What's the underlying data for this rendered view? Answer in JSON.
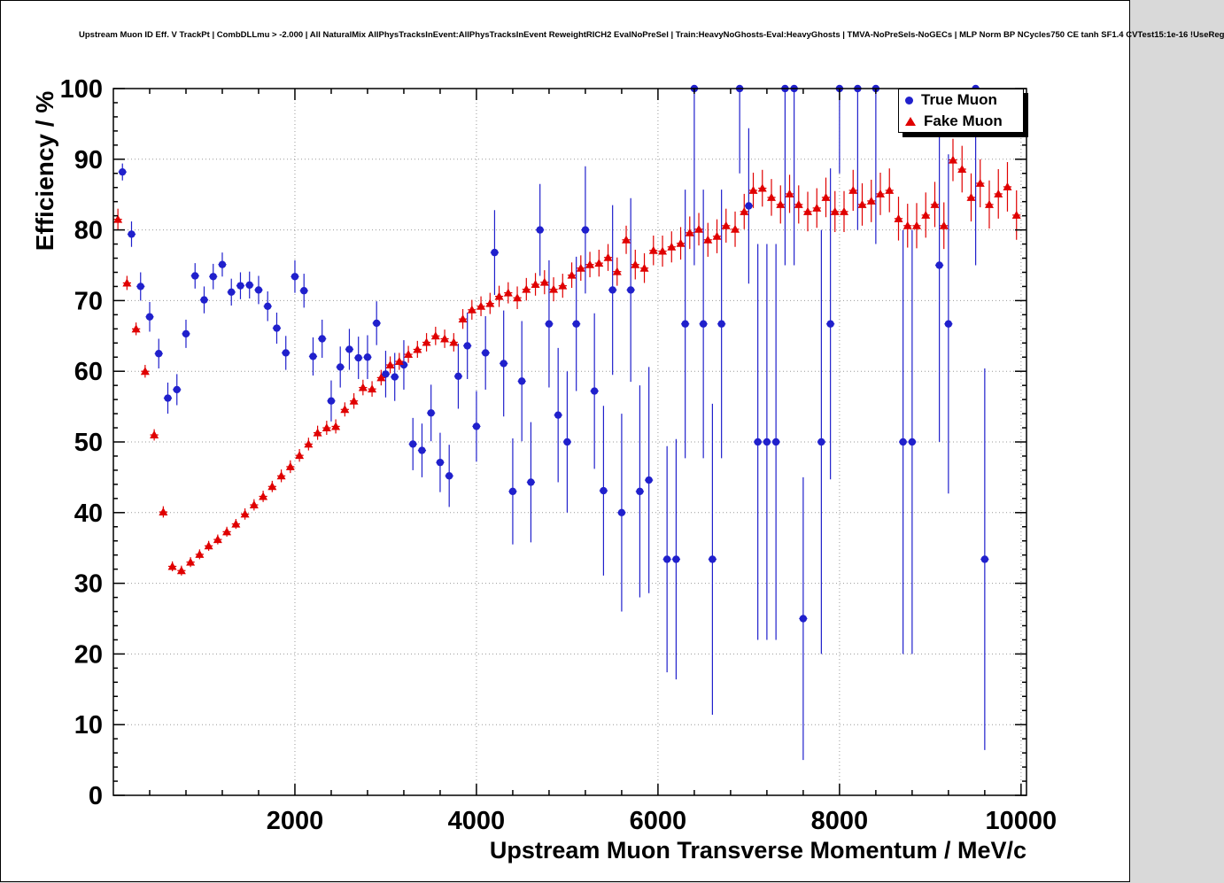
{
  "title_line": "Upstream Muon ID Eff. V TrackPt | CombDLLmu > -2.000 | All NaturalMix AllPhysTracksInEvent:AllPhysTracksInEvent ReweightRICH2 EvalNoPreSel | Train:HeavyNoGhosts-Eval:HeavyGhosts | TMVA-NoPreSels-NoGECs | MLP Norm BP NCycles750 CE tanh SF1.4 CVTest15:1e-16 !UseReg",
  "chart_data": {
    "type": "scatter",
    "title": "Upstream Muon ID Eff. V TrackPt | CombDLLmu > -2.000 | All NaturalMix AllPhysTracksInEvent:AllPhysTracksInEvent ReweightRICH2 EvalNoPreSel | Train:HeavyNoGhosts-Eval:HeavyGhosts | TMVA-NoPreSels-NoGECs | MLP Norm BP NCycles750 CE tanh SF1.4 CVTest15:1e-16 !UseReg",
    "xlabel": "Upstream Muon Transverse Momentum / MeV/c",
    "ylabel": "Efficiency / %",
    "xlim": [
      0,
      10060
    ],
    "ylim": [
      0,
      100
    ],
    "x_ticks": [
      2000,
      4000,
      6000,
      8000,
      10000
    ],
    "y_ticks": [
      0,
      10,
      20,
      30,
      40,
      50,
      60,
      70,
      80,
      90,
      100
    ],
    "grid": "dotted",
    "legend_position": "top-right",
    "grid_color": "#999999",
    "series": [
      {
        "name": "True Muon",
        "marker": "circle",
        "color": "#2020cc",
        "points": [
          [
            100,
            88.2,
            1.2
          ],
          [
            200,
            79.4,
            1.8
          ],
          [
            300,
            72.0,
            2.0
          ],
          [
            400,
            67.7,
            2.1
          ],
          [
            500,
            62.5,
            2.1
          ],
          [
            600,
            56.2,
            2.2
          ],
          [
            700,
            57.4,
            2.2
          ],
          [
            800,
            65.3,
            2.0
          ],
          [
            900,
            73.5,
            1.8
          ],
          [
            1000,
            70.1,
            1.9
          ],
          [
            1100,
            73.4,
            1.8
          ],
          [
            1200,
            75.1,
            1.7
          ],
          [
            1300,
            71.2,
            1.9
          ],
          [
            1400,
            72.1,
            1.9
          ],
          [
            1500,
            72.2,
            1.9
          ],
          [
            1600,
            71.5,
            2.0
          ],
          [
            1700,
            69.2,
            2.1
          ],
          [
            1800,
            66.1,
            2.2
          ],
          [
            1900,
            62.6,
            2.4
          ],
          [
            2000,
            73.4,
            2.3
          ],
          [
            2100,
            71.4,
            2.4
          ],
          [
            2200,
            62.1,
            2.7
          ],
          [
            2300,
            64.6,
            2.7
          ],
          [
            2400,
            55.8,
            2.9
          ],
          [
            2500,
            60.6,
            2.9
          ],
          [
            2600,
            63.1,
            2.9
          ],
          [
            2700,
            61.9,
            3.0
          ],
          [
            2800,
            62.0,
            3.1
          ],
          [
            2900,
            66.8,
            3.1
          ],
          [
            3000,
            59.6,
            3.3
          ],
          [
            3100,
            59.2,
            3.4
          ],
          [
            3200,
            60.9,
            3.5
          ],
          [
            3300,
            49.7,
            3.7
          ],
          [
            3400,
            48.8,
            3.8
          ],
          [
            3500,
            54.1,
            4.0
          ],
          [
            3600,
            47.1,
            4.2
          ],
          [
            3700,
            45.2,
            4.4
          ],
          [
            3800,
            59.3,
            4.6
          ],
          [
            3900,
            63.6,
            4.7
          ],
          [
            4000,
            52.2,
            5.0
          ],
          [
            4100,
            62.6,
            5.2
          ],
          [
            4200,
            76.8,
            6.0
          ],
          [
            4300,
            61.1,
            7.5
          ],
          [
            4400,
            43.0,
            7.5
          ],
          [
            4500,
            58.6,
            8.5
          ],
          [
            4600,
            44.3,
            8.5
          ],
          [
            4700,
            80.0,
            6.5
          ],
          [
            4800,
            66.7,
            9.0
          ],
          [
            4900,
            53.8,
            9.5
          ],
          [
            5000,
            50.0,
            10.0
          ],
          [
            5100,
            66.7,
            9.5
          ],
          [
            5200,
            80.0,
            9.0
          ],
          [
            5300,
            57.2,
            11.0
          ],
          [
            5400,
            43.1,
            12.0
          ],
          [
            5500,
            71.5,
            12.0
          ],
          [
            5600,
            40.0,
            14.0
          ],
          [
            5700,
            71.5,
            13.0
          ],
          [
            5800,
            43.0,
            15.0
          ],
          [
            5900,
            44.6,
            16.0
          ],
          [
            6100,
            33.4,
            16.0
          ],
          [
            6200,
            33.4,
            17.0
          ],
          [
            6300,
            66.7,
            19.0
          ],
          [
            6400,
            100.0,
            25.0
          ],
          [
            6500,
            66.7,
            19.0
          ],
          [
            6600,
            33.4,
            22.0
          ],
          [
            6700,
            66.7,
            19.0
          ],
          [
            6900,
            100.0,
            12.0
          ],
          [
            7000,
            83.4,
            11.0
          ],
          [
            7100,
            50.0,
            28.0
          ],
          [
            7200,
            50.0,
            28.0
          ],
          [
            7300,
            50.0,
            28.0
          ],
          [
            7400,
            100.0,
            25.0
          ],
          [
            7500,
            100.0,
            25.0
          ],
          [
            7600,
            25.0,
            20.0
          ],
          [
            7800,
            50.0,
            30.0
          ],
          [
            7900,
            66.7,
            22.0
          ],
          [
            8000,
            100.0,
            12.0
          ],
          [
            8200,
            100.0,
            20.0
          ],
          [
            8400,
            100.0,
            22.0
          ],
          [
            8700,
            50.0,
            30.0
          ],
          [
            8800,
            50.0,
            30.0
          ],
          [
            9100,
            75.0,
            25.0
          ],
          [
            9200,
            66.7,
            24.0
          ],
          [
            9500,
            100.0,
            25.0
          ],
          [
            9600,
            33.4,
            27.0
          ]
        ]
      },
      {
        "name": "Fake Muon",
        "marker": "triangle",
        "color": "#e00000",
        "points": [
          [
            50,
            81.5,
            1.5
          ],
          [
            150,
            72.5,
            1.0
          ],
          [
            250,
            66.0,
            0.9
          ],
          [
            350,
            60.0,
            0.9
          ],
          [
            450,
            51.0,
            0.8
          ],
          [
            550,
            40.1,
            0.8
          ],
          [
            650,
            32.4,
            0.7
          ],
          [
            750,
            31.8,
            0.7
          ],
          [
            850,
            33.0,
            0.7
          ],
          [
            950,
            34.1,
            0.7
          ],
          [
            1050,
            35.3,
            0.7
          ],
          [
            1150,
            36.2,
            0.7
          ],
          [
            1250,
            37.3,
            0.7
          ],
          [
            1350,
            38.4,
            0.7
          ],
          [
            1450,
            39.8,
            0.8
          ],
          [
            1550,
            41.1,
            0.8
          ],
          [
            1650,
            42.3,
            0.8
          ],
          [
            1750,
            43.7,
            0.8
          ],
          [
            1850,
            45.2,
            0.9
          ],
          [
            1950,
            46.5,
            0.9
          ],
          [
            2050,
            48.1,
            0.9
          ],
          [
            2150,
            49.7,
            0.9
          ],
          [
            2250,
            51.3,
            1.0
          ],
          [
            2350,
            52.0,
            1.0
          ],
          [
            2450,
            52.2,
            1.0
          ],
          [
            2550,
            54.6,
            1.0
          ],
          [
            2650,
            55.8,
            1.1
          ],
          [
            2750,
            57.7,
            1.1
          ],
          [
            2850,
            57.5,
            1.1
          ],
          [
            2950,
            59.1,
            1.1
          ],
          [
            3050,
            60.9,
            1.2
          ],
          [
            3150,
            61.4,
            1.2
          ],
          [
            3250,
            62.4,
            1.2
          ],
          [
            3350,
            63.1,
            1.2
          ],
          [
            3450,
            64.1,
            1.3
          ],
          [
            3550,
            65.0,
            1.3
          ],
          [
            3650,
            64.6,
            1.3
          ],
          [
            3750,
            64.1,
            1.3
          ],
          [
            3850,
            67.4,
            1.4
          ],
          [
            3950,
            68.7,
            1.4
          ],
          [
            4050,
            69.2,
            1.4
          ],
          [
            4150,
            69.6,
            1.5
          ],
          [
            4250,
            70.6,
            1.5
          ],
          [
            4350,
            71.1,
            1.5
          ],
          [
            4450,
            70.4,
            1.6
          ],
          [
            4550,
            71.6,
            1.6
          ],
          [
            4650,
            72.3,
            1.6
          ],
          [
            4750,
            72.6,
            1.7
          ],
          [
            4850,
            71.6,
            1.7
          ],
          [
            4950,
            72.1,
            1.7
          ],
          [
            5050,
            73.6,
            1.8
          ],
          [
            5150,
            74.6,
            1.8
          ],
          [
            5250,
            75.1,
            1.8
          ],
          [
            5350,
            75.3,
            1.9
          ],
          [
            5450,
            76.1,
            1.9
          ],
          [
            5550,
            74.1,
            2.0
          ],
          [
            5650,
            78.6,
            2.0
          ],
          [
            5750,
            75.1,
            2.1
          ],
          [
            5850,
            74.6,
            2.1
          ],
          [
            5950,
            77.1,
            2.1
          ],
          [
            6050,
            77.0,
            2.2
          ],
          [
            6150,
            77.6,
            2.2
          ],
          [
            6250,
            78.1,
            2.3
          ],
          [
            6350,
            79.6,
            2.3
          ],
          [
            6450,
            80.1,
            2.3
          ],
          [
            6550,
            78.6,
            2.4
          ],
          [
            6650,
            79.1,
            2.4
          ],
          [
            6750,
            80.6,
            2.4
          ],
          [
            6850,
            80.1,
            2.5
          ],
          [
            6950,
            82.6,
            2.5
          ],
          [
            7050,
            85.6,
            2.5
          ],
          [
            7150,
            85.9,
            2.6
          ],
          [
            7250,
            84.6,
            2.6
          ],
          [
            7350,
            83.6,
            2.7
          ],
          [
            7450,
            85.1,
            2.7
          ],
          [
            7550,
            83.6,
            2.7
          ],
          [
            7650,
            82.6,
            2.8
          ],
          [
            7750,
            83.1,
            2.8
          ],
          [
            7850,
            84.6,
            2.8
          ],
          [
            7950,
            82.6,
            2.9
          ],
          [
            8050,
            82.6,
            2.9
          ],
          [
            8150,
            85.6,
            2.9
          ],
          [
            8250,
            83.6,
            3.0
          ],
          [
            8350,
            84.1,
            3.0
          ],
          [
            8450,
            85.1,
            3.0
          ],
          [
            8550,
            85.6,
            3.1
          ],
          [
            8650,
            81.6,
            3.1
          ],
          [
            8750,
            80.6,
            3.1
          ],
          [
            8850,
            80.6,
            3.2
          ],
          [
            8950,
            82.1,
            3.2
          ],
          [
            9050,
            83.6,
            3.2
          ],
          [
            9150,
            80.6,
            3.3
          ],
          [
            9250,
            89.9,
            3.0
          ],
          [
            9350,
            88.6,
            3.3
          ],
          [
            9450,
            84.6,
            3.4
          ],
          [
            9550,
            86.6,
            3.4
          ],
          [
            9650,
            83.6,
            3.4
          ],
          [
            9750,
            85.1,
            3.5
          ],
          [
            9850,
            86.1,
            3.5
          ],
          [
            9950,
            82.1,
            3.5
          ]
        ]
      }
    ]
  }
}
